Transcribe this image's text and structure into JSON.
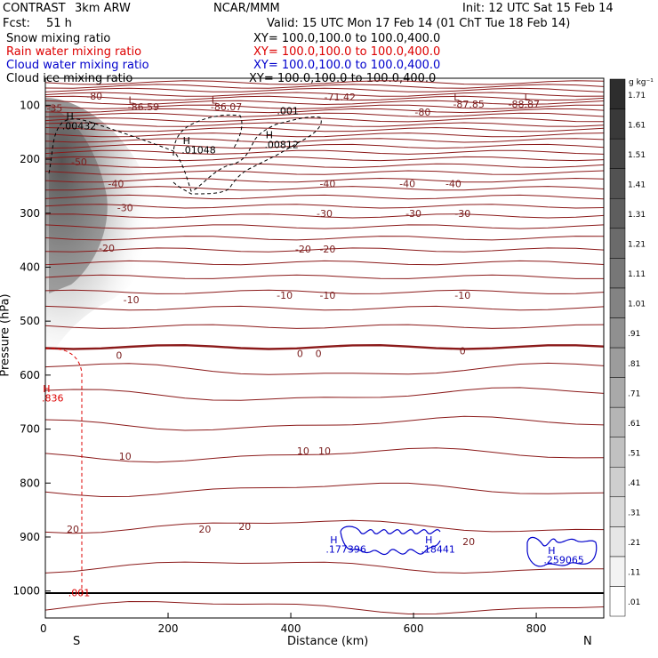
{
  "header": {
    "model": "CONTRAST",
    "model_run": "3km ARW",
    "center": "NCAR/MMM",
    "init": "Init: 12 UTC Sat 15 Feb 14",
    "fcst_label": "Fcst:",
    "fcst_value": "51 h",
    "valid": "Valid: 15 UTC Mon 17 Feb 14 (01 ChT Tue 18 Feb 14)"
  },
  "fields": [
    {
      "label": "Snow mixing ratio",
      "xy": "XY= 100.0,100.0 to 100.0,400.0",
      "color": "#000000"
    },
    {
      "label": "Rain water mixing ratio",
      "xy": "XY= 100.0,100.0 to 100.0,400.0",
      "color": "#dd0000"
    },
    {
      "label": "Cloud water mixing ratio",
      "xy": "XY= 100.0,100.0 to 100.0,400.0",
      "color": "#0000cc"
    },
    {
      "label": "Cloud ice mixing ratio",
      "xy": "XY= 100.0,100.0 to 100.0,400.0",
      "color": "#000000"
    }
  ],
  "chart_data": {
    "type": "contour cross-section",
    "xlabel": "Distance (km)",
    "ylabel": "Pressure (hPa)",
    "xlim": [
      0,
      910
    ],
    "ylim": [
      1050,
      50
    ],
    "xticks": [
      0,
      200,
      400,
      600,
      800
    ],
    "yticks": [
      100,
      200,
      300,
      400,
      500,
      600,
      700,
      800,
      900,
      1000
    ],
    "x_end_labels": {
      "left": "S",
      "right": "N"
    },
    "colorbar": {
      "unit": "g kg⁻¹",
      "levels": [
        ".01",
        ".11",
        ".21",
        ".31",
        ".41",
        ".51",
        ".61",
        ".71",
        ".81",
        ".91",
        "1.01",
        "1.11",
        "1.21",
        "1.31",
        "1.41",
        "1.51",
        "1.61",
        "1.71"
      ]
    },
    "temperature_labels": [
      {
        "text": "-80",
        "x": 80,
        "p": 83
      },
      {
        "text": "-86.59",
        "x": 160,
        "p": 103
      },
      {
        "text": "-86.07",
        "x": 295,
        "p": 103
      },
      {
        "text": "-71.42",
        "x": 480,
        "p": 85
      },
      {
        "text": "-87.85",
        "x": 690,
        "p": 98
      },
      {
        "text": "-88.87",
        "x": 780,
        "p": 98
      },
      {
        "text": "-80",
        "x": 615,
        "p": 113
      },
      {
        "text": "-35",
        "x": 15,
        "p": 105
      },
      {
        "text": "-50",
        "x": 55,
        "p": 205
      },
      {
        "text": "-40",
        "x": 115,
        "p": 245
      },
      {
        "text": "-40",
        "x": 460,
        "p": 245
      },
      {
        "text": "-40",
        "x": 590,
        "p": 245
      },
      {
        "text": "-40",
        "x": 665,
        "p": 245
      },
      {
        "text": "-30",
        "x": 130,
        "p": 290
      },
      {
        "text": "-30",
        "x": 455,
        "p": 300
      },
      {
        "text": "-30",
        "x": 600,
        "p": 300
      },
      {
        "text": "-30",
        "x": 680,
        "p": 300
      },
      {
        "text": "-20",
        "x": 100,
        "p": 365
      },
      {
        "text": "-20",
        "x": 420,
        "p": 366
      },
      {
        "text": "-20",
        "x": 460,
        "p": 366
      },
      {
        "text": "-10",
        "x": 140,
        "p": 460
      },
      {
        "text": "-10",
        "x": 390,
        "p": 452
      },
      {
        "text": "-10",
        "x": 460,
        "p": 452
      },
      {
        "text": "-10",
        "x": 680,
        "p": 452
      },
      {
        "text": "0",
        "x": 120,
        "p": 563
      },
      {
        "text": "0",
        "x": 415,
        "p": 560
      },
      {
        "text": "0",
        "x": 445,
        "p": 560
      },
      {
        "text": "0",
        "x": 680,
        "p": 555
      },
      {
        "text": "10",
        "x": 130,
        "p": 750
      },
      {
        "text": "10",
        "x": 420,
        "p": 740
      },
      {
        "text": "10",
        "x": 455,
        "p": 740
      },
      {
        "text": "20",
        "x": 45,
        "p": 885
      },
      {
        "text": "20",
        "x": 260,
        "p": 885
      },
      {
        "text": "20",
        "x": 325,
        "p": 880
      },
      {
        "text": "20",
        "x": 690,
        "p": 908
      }
    ],
    "extrema_labels": [
      {
        "text": "L",
        "x": 140,
        "p": 90,
        "color": "#7a1f1f"
      },
      {
        "text": "L",
        "x": 275,
        "p": 90,
        "color": "#7a1f1f"
      },
      {
        "text": "L",
        "x": 670,
        "p": 85,
        "color": "#7a1f1f"
      },
      {
        "text": "L",
        "x": 785,
        "p": 85,
        "color": "#7a1f1f"
      },
      {
        "text": "H",
        "x": 40,
        "p": 120,
        "color": "#000000"
      },
      {
        "text": ".00432",
        "x": 55,
        "p": 138,
        "color": "#000000"
      },
      {
        "text": "H",
        "x": 230,
        "p": 165,
        "color": "#000000"
      },
      {
        "text": ".01048",
        "x": 250,
        "p": 183,
        "color": "#000000"
      },
      {
        "text": "H",
        "x": 365,
        "p": 155,
        "color": "#000000"
      },
      {
        "text": ".00812",
        "x": 385,
        "p": 173,
        "color": "#000000"
      },
      {
        "text": ".001",
        "x": 395,
        "p": 110,
        "color": "#000000"
      },
      {
        "text": "H",
        "x": 470,
        "p": 905,
        "color": "#0000cc"
      },
      {
        "text": ".177396",
        "x": 490,
        "p": 922,
        "color": "#0000cc"
      },
      {
        "text": "H",
        "x": 625,
        "p": 905,
        "color": "#0000cc"
      },
      {
        "text": ".18441",
        "x": 640,
        "p": 922,
        "color": "#0000cc"
      },
      {
        "text": "H",
        "x": 825,
        "p": 925,
        "color": "#0000cc"
      },
      {
        "text": ".259065",
        "x": 845,
        "p": 942,
        "color": "#0000cc"
      },
      {
        "text": "H",
        "x": 2,
        "p": 625,
        "color": "#dd0000"
      },
      {
        "text": ".836",
        "x": 12,
        "p": 642,
        "color": "#dd0000"
      },
      {
        "text": ".001",
        "x": 55,
        "p": 1003,
        "color": "#dd0000"
      }
    ]
  }
}
